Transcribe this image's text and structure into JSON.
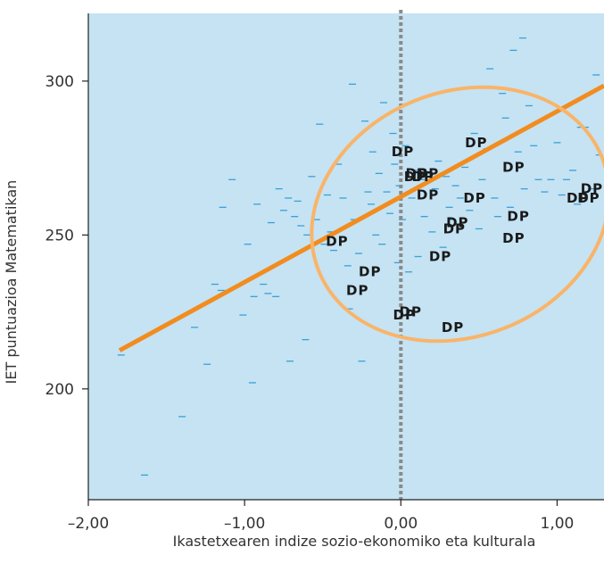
{
  "chart_data": {
    "type": "scatter",
    "title": "",
    "xlabel": "Ikastetxearen indize sozio-ekonomiko eta kulturala",
    "ylabel": "IET puntuazioa Matematikan",
    "xlim": [
      -2.0,
      1.3
    ],
    "ylim": [
      164,
      322
    ],
    "x_ticks": [
      -2.0,
      -1.0,
      0.0,
      1.0
    ],
    "x_tick_labels": [
      "–2,00",
      "–1,00",
      "0,00",
      "1,00"
    ],
    "y_ticks": [
      200,
      250,
      300
    ],
    "y_tick_labels": [
      "200",
      "250",
      "300"
    ],
    "grid": false,
    "legend": "none",
    "colors": {
      "plot_bg": "#c5e3f3",
      "dash": "#3aa0d8",
      "line": "#f28c1e",
      "ellipse": "#f9b469",
      "vline": "#8a8a8a",
      "dp": "#1a1a1a"
    },
    "vertical_reference_x": 0.0,
    "regression_line": {
      "x": [
        -1.8,
        1.3
      ],
      "y": [
        212.5,
        298.5
      ]
    },
    "ellipse_label": "",
    "series": [
      {
        "marker": "dash",
        "points": [
          [
            -1.79,
            211
          ],
          [
            -1.64,
            172
          ],
          [
            -1.4,
            191
          ],
          [
            -1.32,
            220
          ],
          [
            -1.24,
            208
          ],
          [
            -1.19,
            234
          ],
          [
            -1.15,
            232
          ],
          [
            -1.14,
            259
          ],
          [
            -1.08,
            268
          ],
          [
            -1.01,
            224
          ],
          [
            -0.98,
            247
          ],
          [
            -0.95,
            202
          ],
          [
            -0.94,
            230
          ],
          [
            -0.92,
            260
          ],
          [
            -0.88,
            234
          ],
          [
            -0.85,
            231
          ],
          [
            -0.83,
            254
          ],
          [
            -0.8,
            230
          ],
          [
            -0.78,
            265
          ],
          [
            -0.75,
            258
          ],
          [
            -0.72,
            262
          ],
          [
            -0.71,
            209
          ],
          [
            -0.68,
            256
          ],
          [
            -0.66,
            261
          ],
          [
            -0.64,
            253
          ],
          [
            -0.61,
            216
          ],
          [
            -0.6,
            250
          ],
          [
            -0.57,
            269
          ],
          [
            -0.54,
            255
          ],
          [
            -0.52,
            286
          ],
          [
            -0.49,
            247
          ],
          [
            -0.47,
            263
          ],
          [
            -0.45,
            251
          ],
          [
            -0.43,
            245
          ],
          [
            -0.4,
            273
          ],
          [
            -0.37,
            262
          ],
          [
            -0.34,
            240
          ],
          [
            -0.33,
            226
          ],
          [
            -0.31,
            299
          ],
          [
            -0.3,
            255
          ],
          [
            -0.27,
            244
          ],
          [
            -0.25,
            209
          ],
          [
            -0.23,
            287
          ],
          [
            -0.21,
            264
          ],
          [
            -0.19,
            260
          ],
          [
            -0.18,
            277
          ],
          [
            -0.16,
            250
          ],
          [
            -0.14,
            270
          ],
          [
            -0.12,
            247
          ],
          [
            -0.11,
            293
          ],
          [
            -0.09,
            264
          ],
          [
            -0.07,
            257
          ],
          [
            -0.05,
            283
          ],
          [
            -0.04,
            273
          ],
          [
            -0.02,
            241
          ],
          [
            -0.01,
            266
          ],
          [
            0.01,
            255
          ],
          [
            0.03,
            279
          ],
          [
            0.05,
            238
          ],
          [
            0.07,
            262
          ],
          [
            0.09,
            271
          ],
          [
            0.11,
            243
          ],
          [
            0.13,
            268
          ],
          [
            0.15,
            256
          ],
          [
            0.17,
            270
          ],
          [
            0.2,
            251
          ],
          [
            0.22,
            265
          ],
          [
            0.24,
            274
          ],
          [
            0.27,
            246
          ],
          [
            0.29,
            269
          ],
          [
            0.31,
            259
          ],
          [
            0.33,
            255
          ],
          [
            0.35,
            266
          ],
          [
            0.38,
            262
          ],
          [
            0.41,
            272
          ],
          [
            0.44,
            258
          ],
          [
            0.47,
            283
          ],
          [
            0.5,
            252
          ],
          [
            0.52,
            268
          ],
          [
            0.55,
            278
          ],
          [
            0.57,
            304
          ],
          [
            0.6,
            262
          ],
          [
            0.62,
            256
          ],
          [
            0.65,
            296
          ],
          [
            0.67,
            288
          ],
          [
            0.7,
            259
          ],
          [
            0.72,
            310
          ],
          [
            0.75,
            277
          ],
          [
            0.79,
            265
          ],
          [
            0.82,
            292
          ],
          [
            0.85,
            279
          ],
          [
            0.88,
            268
          ],
          [
            0.92,
            264
          ],
          [
            0.96,
            268
          ],
          [
            1.0,
            280
          ],
          [
            1.03,
            263
          ],
          [
            1.06,
            268
          ],
          [
            1.1,
            271
          ],
          [
            1.13,
            260
          ],
          [
            1.15,
            285
          ],
          [
            1.18,
            285
          ],
          [
            1.22,
            265
          ],
          [
            1.25,
            302
          ],
          [
            1.27,
            276
          ],
          [
            0.78,
            314
          ]
        ]
      },
      {
        "marker": "text",
        "label": "DP",
        "points": [
          [
            -0.48,
            248
          ],
          [
            -0.27,
            238
          ],
          [
            -0.35,
            232
          ],
          [
            -0.06,
            277
          ],
          [
            0.1,
            270
          ],
          [
            0.03,
            270
          ],
          [
            0.07,
            269
          ],
          [
            0.02,
            269
          ],
          [
            0.1,
            263
          ],
          [
            0.41,
            280
          ],
          [
            0.65,
            272
          ],
          [
            0.4,
            262
          ],
          [
            0.29,
            254
          ],
          [
            0.27,
            252
          ],
          [
            0.18,
            243
          ],
          [
            0.68,
            256
          ],
          [
            0.65,
            249
          ],
          [
            -0.05,
            224
          ],
          [
            -0.01,
            225
          ],
          [
            0.26,
            220
          ],
          [
            1.06,
            262
          ],
          [
            1.13,
            262
          ],
          [
            1.15,
            265
          ]
        ]
      }
    ]
  }
}
